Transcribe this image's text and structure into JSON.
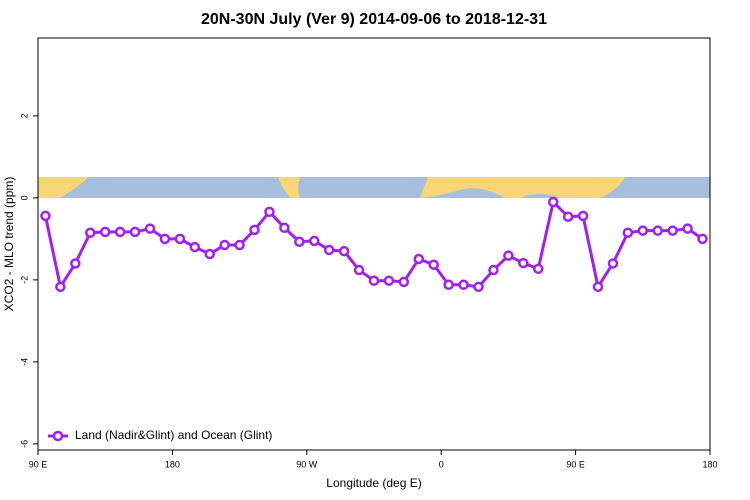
{
  "chart_data": {
    "type": "line",
    "title": "20N-30N July (Ver 9)   2014-09-06 to 2018-12-31",
    "x_label": "Longitude (deg E)",
    "y_label": "XCO2 - MLO trend (ppm)",
    "x": [
      95,
      105,
      115,
      125,
      135,
      145,
      155,
      165,
      175,
      185,
      195,
      205,
      215,
      225,
      235,
      245,
      255,
      265,
      275,
      285,
      295,
      305,
      315,
      325,
      335,
      345,
      355,
      365,
      375,
      385,
      395,
      405,
      415,
      425,
      435,
      445,
      455,
      465,
      475,
      485,
      495,
      505,
      515,
      525,
      535
    ],
    "series": [
      {
        "name": "Land (Nadir&Glint) and Ocean (Glint)",
        "color": "#a020f0",
        "values": [
          -0.44,
          -2.17,
          -1.6,
          -0.85,
          -0.83,
          -0.83,
          -0.83,
          -0.75,
          -1.0,
          -1.0,
          -1.2,
          -1.37,
          -1.15,
          -1.15,
          -0.78,
          -0.34,
          -0.73,
          -1.07,
          -1.05,
          -1.27,
          -1.3,
          -1.76,
          -2.02,
          -2.02,
          -2.05,
          -1.49,
          -1.63,
          -2.12,
          -2.12,
          -2.17,
          -1.76,
          -1.41,
          -1.59,
          -1.73,
          -0.1,
          -0.46,
          -0.44,
          -2.17,
          -1.6,
          -0.85,
          -0.8,
          -0.8,
          -0.8,
          -0.75,
          -1.0
        ]
      }
    ],
    "xlim": [
      90,
      540
    ],
    "xticks": [
      {
        "value": 90,
        "label": "90 E"
      },
      180,
      {
        "value": 270,
        "label": "90 W"
      },
      {
        "value": 360,
        "label": "0"
      },
      {
        "value": 450,
        "label": "90 E"
      },
      {
        "value": 540,
        "label": "180"
      }
    ],
    "ylim": [
      -6.15,
      3.9
    ],
    "yticks": [
      2,
      0,
      -2,
      -4,
      -6
    ],
    "legend": "bottom-left",
    "grid": false
  }
}
